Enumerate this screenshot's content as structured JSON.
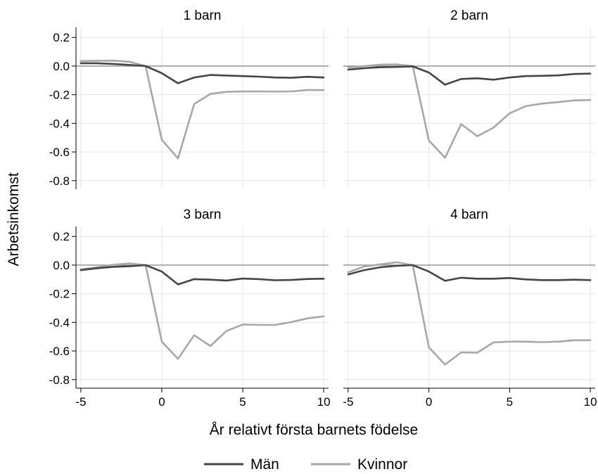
{
  "chart_data": {
    "type": "line",
    "layout": "2x2 panels",
    "ylabel": "Arbetsinkomst",
    "xlabel": "År relativt första barnets födelse",
    "xlim": [
      -5.3,
      10.3
    ],
    "ylim": [
      -0.86,
      0.27
    ],
    "x_ticks": [
      -5,
      0,
      5,
      10
    ],
    "x_tick_labels": [
      "-5",
      "0",
      "5",
      "10"
    ],
    "y_ticks": [
      0.2,
      0.0,
      -0.2,
      -0.4,
      -0.6,
      -0.8
    ],
    "y_tick_labels": [
      "0.2",
      "0.0",
      "-0.2",
      "-0.4",
      "-0.6",
      "-0.8"
    ],
    "grid": true,
    "reference_line": 0,
    "legend_position": "bottom",
    "colors": {
      "Män": "#454545",
      "Kvinnor": "#a8a8a8",
      "grid": "#e6e6e6",
      "zero_line": "#8c8c8c"
    },
    "series_names": [
      "Män",
      "Kvinnor"
    ],
    "x": [
      -5,
      -4,
      -3,
      -2,
      -1,
      0,
      1,
      2,
      3,
      4,
      5,
      6,
      7,
      8,
      9,
      10
    ],
    "panels": [
      {
        "title": "1 barn",
        "series": [
          {
            "name": "Män",
            "values": [
              0.02,
              0.02,
              0.015,
              0.008,
              0.0,
              -0.05,
              -0.12,
              -0.08,
              -0.062,
              -0.066,
              -0.07,
              -0.074,
              -0.08,
              -0.082,
              -0.075,
              -0.08
            ]
          },
          {
            "name": "Kvinnor",
            "values": [
              0.035,
              0.037,
              0.038,
              0.03,
              0.0,
              -0.515,
              -0.645,
              -0.265,
              -0.195,
              -0.18,
              -0.177,
              -0.177,
              -0.178,
              -0.177,
              -0.167,
              -0.168
            ]
          }
        ]
      },
      {
        "title": "2 barn",
        "series": [
          {
            "name": "Män",
            "values": [
              -0.025,
              -0.015,
              -0.008,
              -0.006,
              -0.002,
              -0.045,
              -0.13,
              -0.09,
              -0.085,
              -0.095,
              -0.08,
              -0.07,
              -0.068,
              -0.065,
              -0.055,
              -0.053
            ]
          },
          {
            "name": "Kvinnor",
            "values": [
              -0.01,
              0.0,
              0.01,
              0.012,
              0.0,
              -0.52,
              -0.64,
              -0.405,
              -0.49,
              -0.43,
              -0.33,
              -0.28,
              -0.262,
              -0.252,
              -0.24,
              -0.237
            ]
          }
        ]
      },
      {
        "title": "3 barn",
        "series": [
          {
            "name": "Män",
            "values": [
              -0.035,
              -0.022,
              -0.012,
              -0.008,
              0.0,
              -0.045,
              -0.135,
              -0.098,
              -0.102,
              -0.108,
              -0.094,
              -0.098,
              -0.106,
              -0.104,
              -0.097,
              -0.095
            ]
          },
          {
            "name": "Kvinnor",
            "values": [
              -0.03,
              -0.015,
              0.002,
              0.012,
              0.0,
              -0.535,
              -0.655,
              -0.49,
              -0.565,
              -0.46,
              -0.415,
              -0.418,
              -0.418,
              -0.398,
              -0.372,
              -0.358
            ]
          }
        ]
      },
      {
        "title": "4 barn",
        "series": [
          {
            "name": "Män",
            "values": [
              -0.065,
              -0.035,
              -0.015,
              -0.005,
              0.0,
              -0.045,
              -0.11,
              -0.088,
              -0.095,
              -0.095,
              -0.09,
              -0.1,
              -0.105,
              -0.105,
              -0.102,
              -0.105
            ]
          },
          {
            "name": "Kvinnor",
            "values": [
              -0.05,
              -0.01,
              0.005,
              0.02,
              0.0,
              -0.575,
              -0.695,
              -0.61,
              -0.612,
              -0.54,
              -0.535,
              -0.535,
              -0.538,
              -0.535,
              -0.525,
              -0.525
            ]
          }
        ]
      }
    ]
  }
}
